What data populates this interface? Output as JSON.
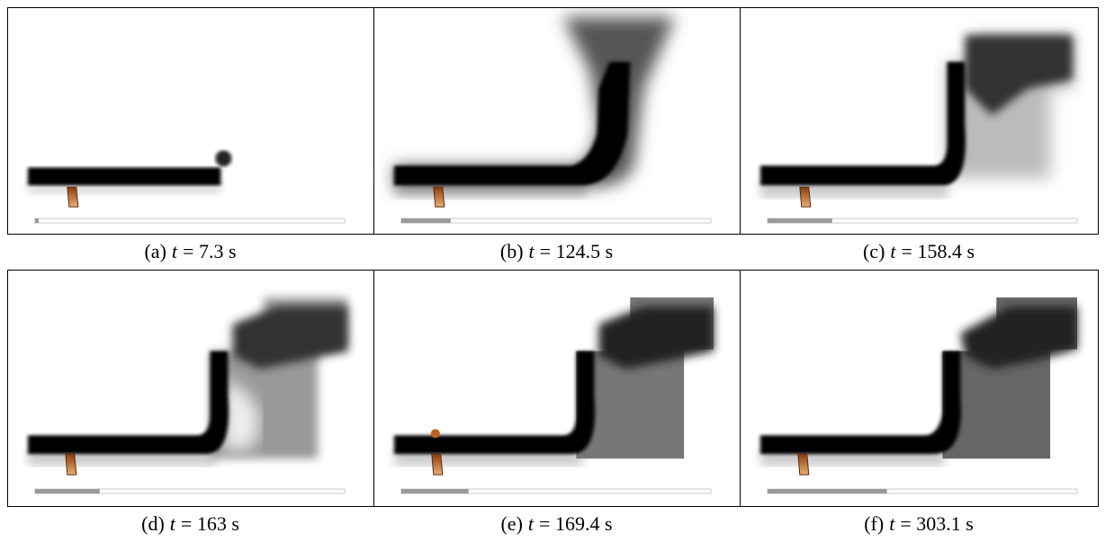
{
  "figure": {
    "panels": [
      {
        "label": "(a)",
        "variable": "t",
        "value": "= 7.3 s"
      },
      {
        "label": "(b)",
        "variable": "t",
        "value": "= 124.5 s"
      },
      {
        "label": "(c)",
        "variable": "t",
        "value": "= 158.4 s"
      },
      {
        "label": "(d)",
        "variable": "t",
        "value": "= 163 s"
      },
      {
        "label": "(e)",
        "variable": "t",
        "value": "= 169.4 s"
      },
      {
        "label": "(f)",
        "variable": "t",
        "value": "= 303.1 s"
      }
    ]
  }
}
